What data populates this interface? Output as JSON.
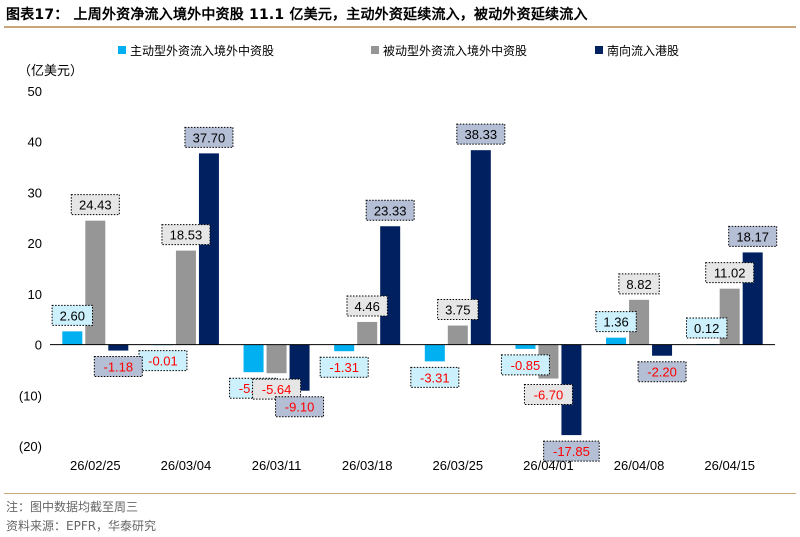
{
  "title": "图表17：  上周外资净流入境外中资股 11.1 亿美元，主动外资延续流入，被动外资延续流入",
  "notes": {
    "note": "注：图中数据均截至周三",
    "source": "资料来源：EPFR，华泰研究"
  },
  "chart_data": {
    "type": "bar",
    "ylabel": "（亿美元）",
    "ylim": [
      -20,
      50
    ],
    "yticks": [
      50,
      40,
      30,
      20,
      10,
      0,
      -10,
      -20
    ],
    "ytick_labels": [
      "50",
      "40",
      "30",
      "20",
      "10",
      "0",
      "(10)",
      "(20)"
    ],
    "categories": [
      "26/02/25",
      "26/03/04",
      "26/03/11",
      "26/03/18",
      "26/03/25",
      "26/04/01",
      "26/04/08",
      "26/04/15"
    ],
    "legend_position": "top",
    "series": [
      {
        "name": "主动型外资流入境外中资股",
        "color": "#00b0f0",
        "values": [
          2.6,
          -0.01,
          -5.45,
          -1.31,
          -3.31,
          -0.85,
          1.36,
          0.12
        ],
        "labels": [
          "2.60",
          "-0.01",
          "-5.45",
          "-1.31",
          "-3.31",
          "-0.85",
          "1.36",
          "0.12"
        ]
      },
      {
        "name": "被动型外资流入境外中资股",
        "color": "#969696",
        "values": [
          24.43,
          18.53,
          -5.64,
          4.46,
          3.75,
          -6.7,
          8.82,
          11.02
        ],
        "labels": [
          "24.43",
          "18.53",
          "-5.64",
          "4.46",
          "3.75",
          "-6.70",
          "8.82",
          "11.02"
        ]
      },
      {
        "name": "南向流入港股",
        "color": "#002060",
        "values": [
          -1.18,
          37.7,
          -9.1,
          23.33,
          38.33,
          -17.85,
          -2.2,
          18.17
        ],
        "labels": [
          "-1.18",
          "37.70",
          "-9.10",
          "23.33",
          "38.33",
          "-17.85",
          "-2.20",
          "18.17"
        ]
      }
    ],
    "label_colors": {
      "positive": "#000000",
      "negative": "#ff0000"
    },
    "label_fills": [
      "#ccf0fc",
      "#e6e6e6",
      "#b4bed4"
    ]
  }
}
